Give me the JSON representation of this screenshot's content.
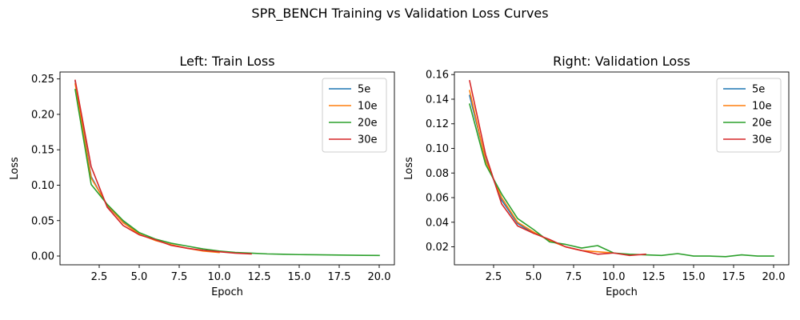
{
  "figure": {
    "suptitle": "SPR_BENCH Training vs Validation Loss Curves"
  },
  "chart_data": [
    {
      "type": "line",
      "title": "Left: Train Loss",
      "xlabel": "Epoch",
      "ylabel": "Loss",
      "xlim": [
        0.05,
        20.95
      ],
      "ylim": [
        -0.0124,
        0.2598
      ],
      "xticks": [
        2.5,
        5.0,
        7.5,
        10.0,
        12.5,
        15.0,
        17.5,
        20.0
      ],
      "xtick_labels": [
        "2.5",
        "5.0",
        "7.5",
        "10.0",
        "12.5",
        "15.0",
        "17.5",
        "20.0"
      ],
      "yticks": [
        0.0,
        0.05,
        0.1,
        0.15,
        0.2,
        0.25
      ],
      "ytick_labels": [
        "0.00",
        "0.05",
        "0.10",
        "0.15",
        "0.20",
        "0.25"
      ],
      "grid": false,
      "legend_position": "top-right",
      "series": [
        {
          "name": "5e",
          "color": "#1f77b4",
          "x": [
            1,
            2,
            3,
            4,
            5
          ],
          "y": [
            0.247,
            0.112,
            0.071,
            0.048,
            0.032
          ]
        },
        {
          "name": "10e",
          "color": "#ff7f0e",
          "x": [
            1,
            2,
            3,
            4,
            5,
            6,
            7,
            8,
            9,
            10
          ],
          "y": [
            0.243,
            0.11,
            0.072,
            0.047,
            0.031,
            0.022,
            0.016,
            0.011,
            0.007,
            0.005
          ]
        },
        {
          "name": "20e",
          "color": "#2ca02c",
          "x": [
            1,
            2,
            3,
            4,
            5,
            6,
            7,
            8,
            9,
            10,
            11,
            12,
            13,
            14,
            15,
            16,
            17,
            18,
            19,
            20
          ],
          "y": [
            0.235,
            0.101,
            0.073,
            0.05,
            0.033,
            0.024,
            0.018,
            0.014,
            0.01,
            0.007,
            0.005,
            0.004,
            0.003,
            0.0025,
            0.002,
            0.0018,
            0.0015,
            0.0012,
            0.001,
            0.0008
          ]
        },
        {
          "name": "30e",
          "color": "#d62728",
          "x": [
            1,
            2,
            3,
            4,
            5,
            6,
            7,
            8,
            9,
            10,
            11,
            12
          ],
          "y": [
            0.248,
            0.126,
            0.069,
            0.043,
            0.03,
            0.023,
            0.015,
            0.011,
            0.008,
            0.006,
            0.004,
            0.003
          ]
        }
      ]
    },
    {
      "type": "line",
      "title": "Right: Validation Loss",
      "xlabel": "Epoch",
      "ylabel": "Loss",
      "xlim": [
        0.05,
        20.95
      ],
      "ylim": [
        0.0054,
        0.1621
      ],
      "xticks": [
        2.5,
        5.0,
        7.5,
        10.0,
        12.5,
        15.0,
        17.5,
        20.0
      ],
      "xtick_labels": [
        "2.5",
        "5.0",
        "7.5",
        "10.0",
        "12.5",
        "15.0",
        "17.5",
        "20.0"
      ],
      "yticks": [
        0.02,
        0.04,
        0.06,
        0.08,
        0.1,
        0.12,
        0.14,
        0.16
      ],
      "ytick_labels": [
        "0.02",
        "0.04",
        "0.06",
        "0.08",
        "0.10",
        "0.12",
        "0.14",
        "0.16"
      ],
      "grid": false,
      "legend_position": "top-right",
      "series": [
        {
          "name": "5e",
          "color": "#1f77b4",
          "x": [
            1,
            2,
            3,
            4,
            5
          ],
          "y": [
            0.143,
            0.091,
            0.058,
            0.039,
            0.031
          ]
        },
        {
          "name": "10e",
          "color": "#ff7f0e",
          "x": [
            1,
            2,
            3,
            4,
            5,
            6,
            7,
            8,
            9,
            10
          ],
          "y": [
            0.147,
            0.09,
            0.06,
            0.04,
            0.032,
            0.025,
            0.02,
            0.017,
            0.016,
            0.015
          ]
        },
        {
          "name": "20e",
          "color": "#2ca02c",
          "x": [
            1,
            2,
            3,
            4,
            5,
            6,
            7,
            8,
            9,
            10,
            11,
            12,
            13,
            14,
            15,
            16,
            17,
            18,
            19,
            20
          ],
          "y": [
            0.136,
            0.087,
            0.063,
            0.043,
            0.034,
            0.024,
            0.022,
            0.019,
            0.021,
            0.015,
            0.014,
            0.0135,
            0.013,
            0.0145,
            0.0125,
            0.0125,
            0.012,
            0.0135,
            0.0125,
            0.0125
          ]
        },
        {
          "name": "30e",
          "color": "#d62728",
          "x": [
            1,
            2,
            3,
            4,
            5,
            6,
            7,
            8,
            9,
            10,
            11,
            12
          ],
          "y": [
            0.155,
            0.095,
            0.055,
            0.037,
            0.031,
            0.026,
            0.02,
            0.017,
            0.014,
            0.015,
            0.013,
            0.014
          ]
        }
      ]
    }
  ]
}
